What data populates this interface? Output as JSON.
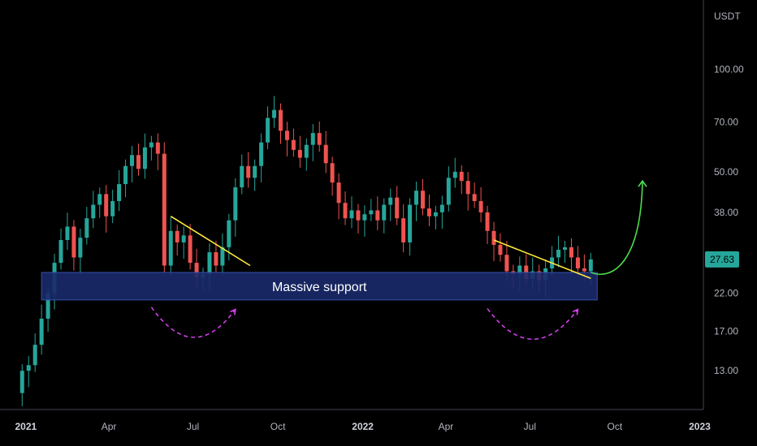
{
  "chart_data": {
    "type": "candlestick",
    "scale": "log",
    "quote_currency": "USDT",
    "price_axis": {
      "ticks": [
        {
          "value": 100,
          "label": "100.00"
        },
        {
          "value": 70,
          "label": "70.00"
        },
        {
          "value": 50,
          "label": "50.00"
        },
        {
          "value": 38,
          "label": "38.00"
        },
        {
          "value": 22,
          "label": "22.00"
        },
        {
          "value": 17,
          "label": "17.00"
        },
        {
          "value": 13,
          "label": "13.00"
        }
      ],
      "ylim": [
        10,
        160
      ]
    },
    "time_axis": {
      "labels": [
        {
          "date": "2021-01-01",
          "label": "2021",
          "year": true
        },
        {
          "date": "2021-04-01",
          "label": "Apr"
        },
        {
          "date": "2021-07-01",
          "label": "Jul"
        },
        {
          "date": "2021-10-01",
          "label": "Oct"
        },
        {
          "date": "2022-01-01",
          "label": "2022",
          "year": true
        },
        {
          "date": "2022-04-01",
          "label": "Apr"
        },
        {
          "date": "2022-07-01",
          "label": "Jul"
        },
        {
          "date": "2022-10-01",
          "label": "Oct"
        },
        {
          "date": "2023-01-01",
          "label": "2023",
          "year": true
        }
      ],
      "xlim": [
        "2020-12-04",
        "2023-01-05"
      ]
    },
    "current_price": {
      "value": 27.63,
      "label": "27.63",
      "color": "#26a69a"
    },
    "colors": {
      "up": "#26a69a",
      "down": "#ef5350"
    },
    "candles_weekly_close": [
      [
        "2020-12-28",
        13.0
      ],
      [
        "2021-01-04",
        13.5
      ],
      [
        "2021-01-11",
        15.5
      ],
      [
        "2021-01-18",
        18.5
      ],
      [
        "2021-01-25",
        22.0
      ],
      [
        "2021-02-01",
        27.0
      ],
      [
        "2021-02-08",
        31.5
      ],
      [
        "2021-02-15",
        34.5
      ],
      [
        "2021-02-22",
        28.0
      ],
      [
        "2021-03-01",
        32.0
      ],
      [
        "2021-03-08",
        36.5
      ],
      [
        "2021-03-15",
        40.0
      ],
      [
        "2021-03-22",
        43.0
      ],
      [
        "2021-03-29",
        37.0
      ],
      [
        "2021-04-05",
        41.0
      ],
      [
        "2021-04-12",
        46.0
      ],
      [
        "2021-04-19",
        52.0
      ],
      [
        "2021-04-26",
        56.0
      ],
      [
        "2021-05-03",
        51.0
      ],
      [
        "2021-05-10",
        59.0
      ],
      [
        "2021-05-17",
        61.0
      ],
      [
        "2021-05-24",
        56.5
      ],
      [
        "2021-05-31",
        26.5
      ],
      [
        "2021-06-07",
        33.5
      ],
      [
        "2021-06-14",
        31.0
      ],
      [
        "2021-06-21",
        32.5
      ],
      [
        "2021-06-28",
        27.0
      ],
      [
        "2021-07-05",
        24.5
      ],
      [
        "2021-07-12",
        25.0
      ],
      [
        "2021-07-19",
        29.0
      ],
      [
        "2021-07-26",
        26.5
      ],
      [
        "2021-08-02",
        30.0
      ],
      [
        "2021-08-09",
        36.0
      ],
      [
        "2021-08-16",
        45.0
      ],
      [
        "2021-08-23",
        52.0
      ],
      [
        "2021-08-30",
        48.0
      ],
      [
        "2021-09-06",
        52.0
      ],
      [
        "2021-09-13",
        61.0
      ],
      [
        "2021-09-20",
        72.0
      ],
      [
        "2021-09-27",
        76.0
      ],
      [
        "2021-10-04",
        66.0
      ],
      [
        "2021-10-11",
        62.0
      ],
      [
        "2021-10-18",
        58.0
      ],
      [
        "2021-10-25",
        55.0
      ],
      [
        "2021-11-01",
        60.0
      ],
      [
        "2021-11-08",
        65.0
      ],
      [
        "2021-11-15",
        60.0
      ],
      [
        "2021-11-22",
        53.0
      ],
      [
        "2021-11-29",
        46.5
      ],
      [
        "2021-12-06",
        40.5
      ],
      [
        "2021-12-13",
        36.5
      ],
      [
        "2021-12-20",
        38.5
      ],
      [
        "2021-12-27",
        36.0
      ],
      [
        "2022-01-03",
        37.5
      ],
      [
        "2022-01-10",
        38.5
      ],
      [
        "2022-01-17",
        36.0
      ],
      [
        "2022-01-24",
        40.0
      ],
      [
        "2022-01-31",
        42.0
      ],
      [
        "2022-02-07",
        36.5
      ],
      [
        "2022-02-14",
        31.0
      ],
      [
        "2022-02-21",
        40.0
      ],
      [
        "2022-02-28",
        44.0
      ],
      [
        "2022-03-07",
        39.0
      ],
      [
        "2022-03-14",
        37.0
      ],
      [
        "2022-03-21",
        38.0
      ],
      [
        "2022-03-28",
        40.0
      ],
      [
        "2022-04-04",
        48.0
      ],
      [
        "2022-04-11",
        50.0
      ],
      [
        "2022-04-18",
        47.0
      ],
      [
        "2022-04-25",
        43.0
      ],
      [
        "2022-05-02",
        41.0
      ],
      [
        "2022-05-09",
        38.0
      ],
      [
        "2022-05-16",
        33.5
      ],
      [
        "2022-05-23",
        30.5
      ],
      [
        "2022-05-30",
        28.5
      ],
      [
        "2022-06-06",
        25.5
      ],
      [
        "2022-06-13",
        25.0
      ],
      [
        "2022-06-20",
        26.5
      ],
      [
        "2022-06-27",
        24.2
      ],
      [
        "2022-07-04",
        25.5
      ],
      [
        "2022-07-11",
        24.0
      ],
      [
        "2022-07-18",
        26.0
      ],
      [
        "2022-07-25",
        28.0
      ],
      [
        "2022-08-01",
        29.5
      ],
      [
        "2022-08-08",
        30.0
      ],
      [
        "2022-08-15",
        28.0
      ],
      [
        "2022-08-22",
        26.0
      ],
      [
        "2022-08-29",
        25.5
      ],
      [
        "2022-09-05",
        27.63
      ]
    ],
    "support_zone": {
      "label": "Massive support",
      "from": "2021-01-18",
      "to": "2022-09-12",
      "low": 21.0,
      "high": 25.3,
      "color": "#1a2a6c"
    },
    "annotations": [
      {
        "type": "trendline",
        "color": "#ffeb3b",
        "from": [
          "2021-06-07",
          37.0
        ],
        "to": [
          "2021-09-01",
          26.5
        ]
      },
      {
        "type": "trendline",
        "color": "#ffeb3b",
        "from": [
          "2022-05-23",
          31.5
        ],
        "to": [
          "2022-09-05",
          24.3
        ]
      },
      {
        "type": "arc",
        "color": "#e040fb",
        "from": [
          "2021-05-17",
          20.0
        ],
        "to": [
          "2021-08-16",
          19.7
        ],
        "bottom": 16.3
      },
      {
        "type": "arc",
        "color": "#e040fb",
        "from": [
          "2022-05-16",
          19.8
        ],
        "to": [
          "2022-08-22",
          19.7
        ],
        "bottom": 16.1
      },
      {
        "type": "projection",
        "color": "#4cdf4c",
        "from": [
          "2022-09-05",
          25.3
        ],
        "to": [
          "2022-10-31",
          47.0
        ]
      }
    ]
  }
}
